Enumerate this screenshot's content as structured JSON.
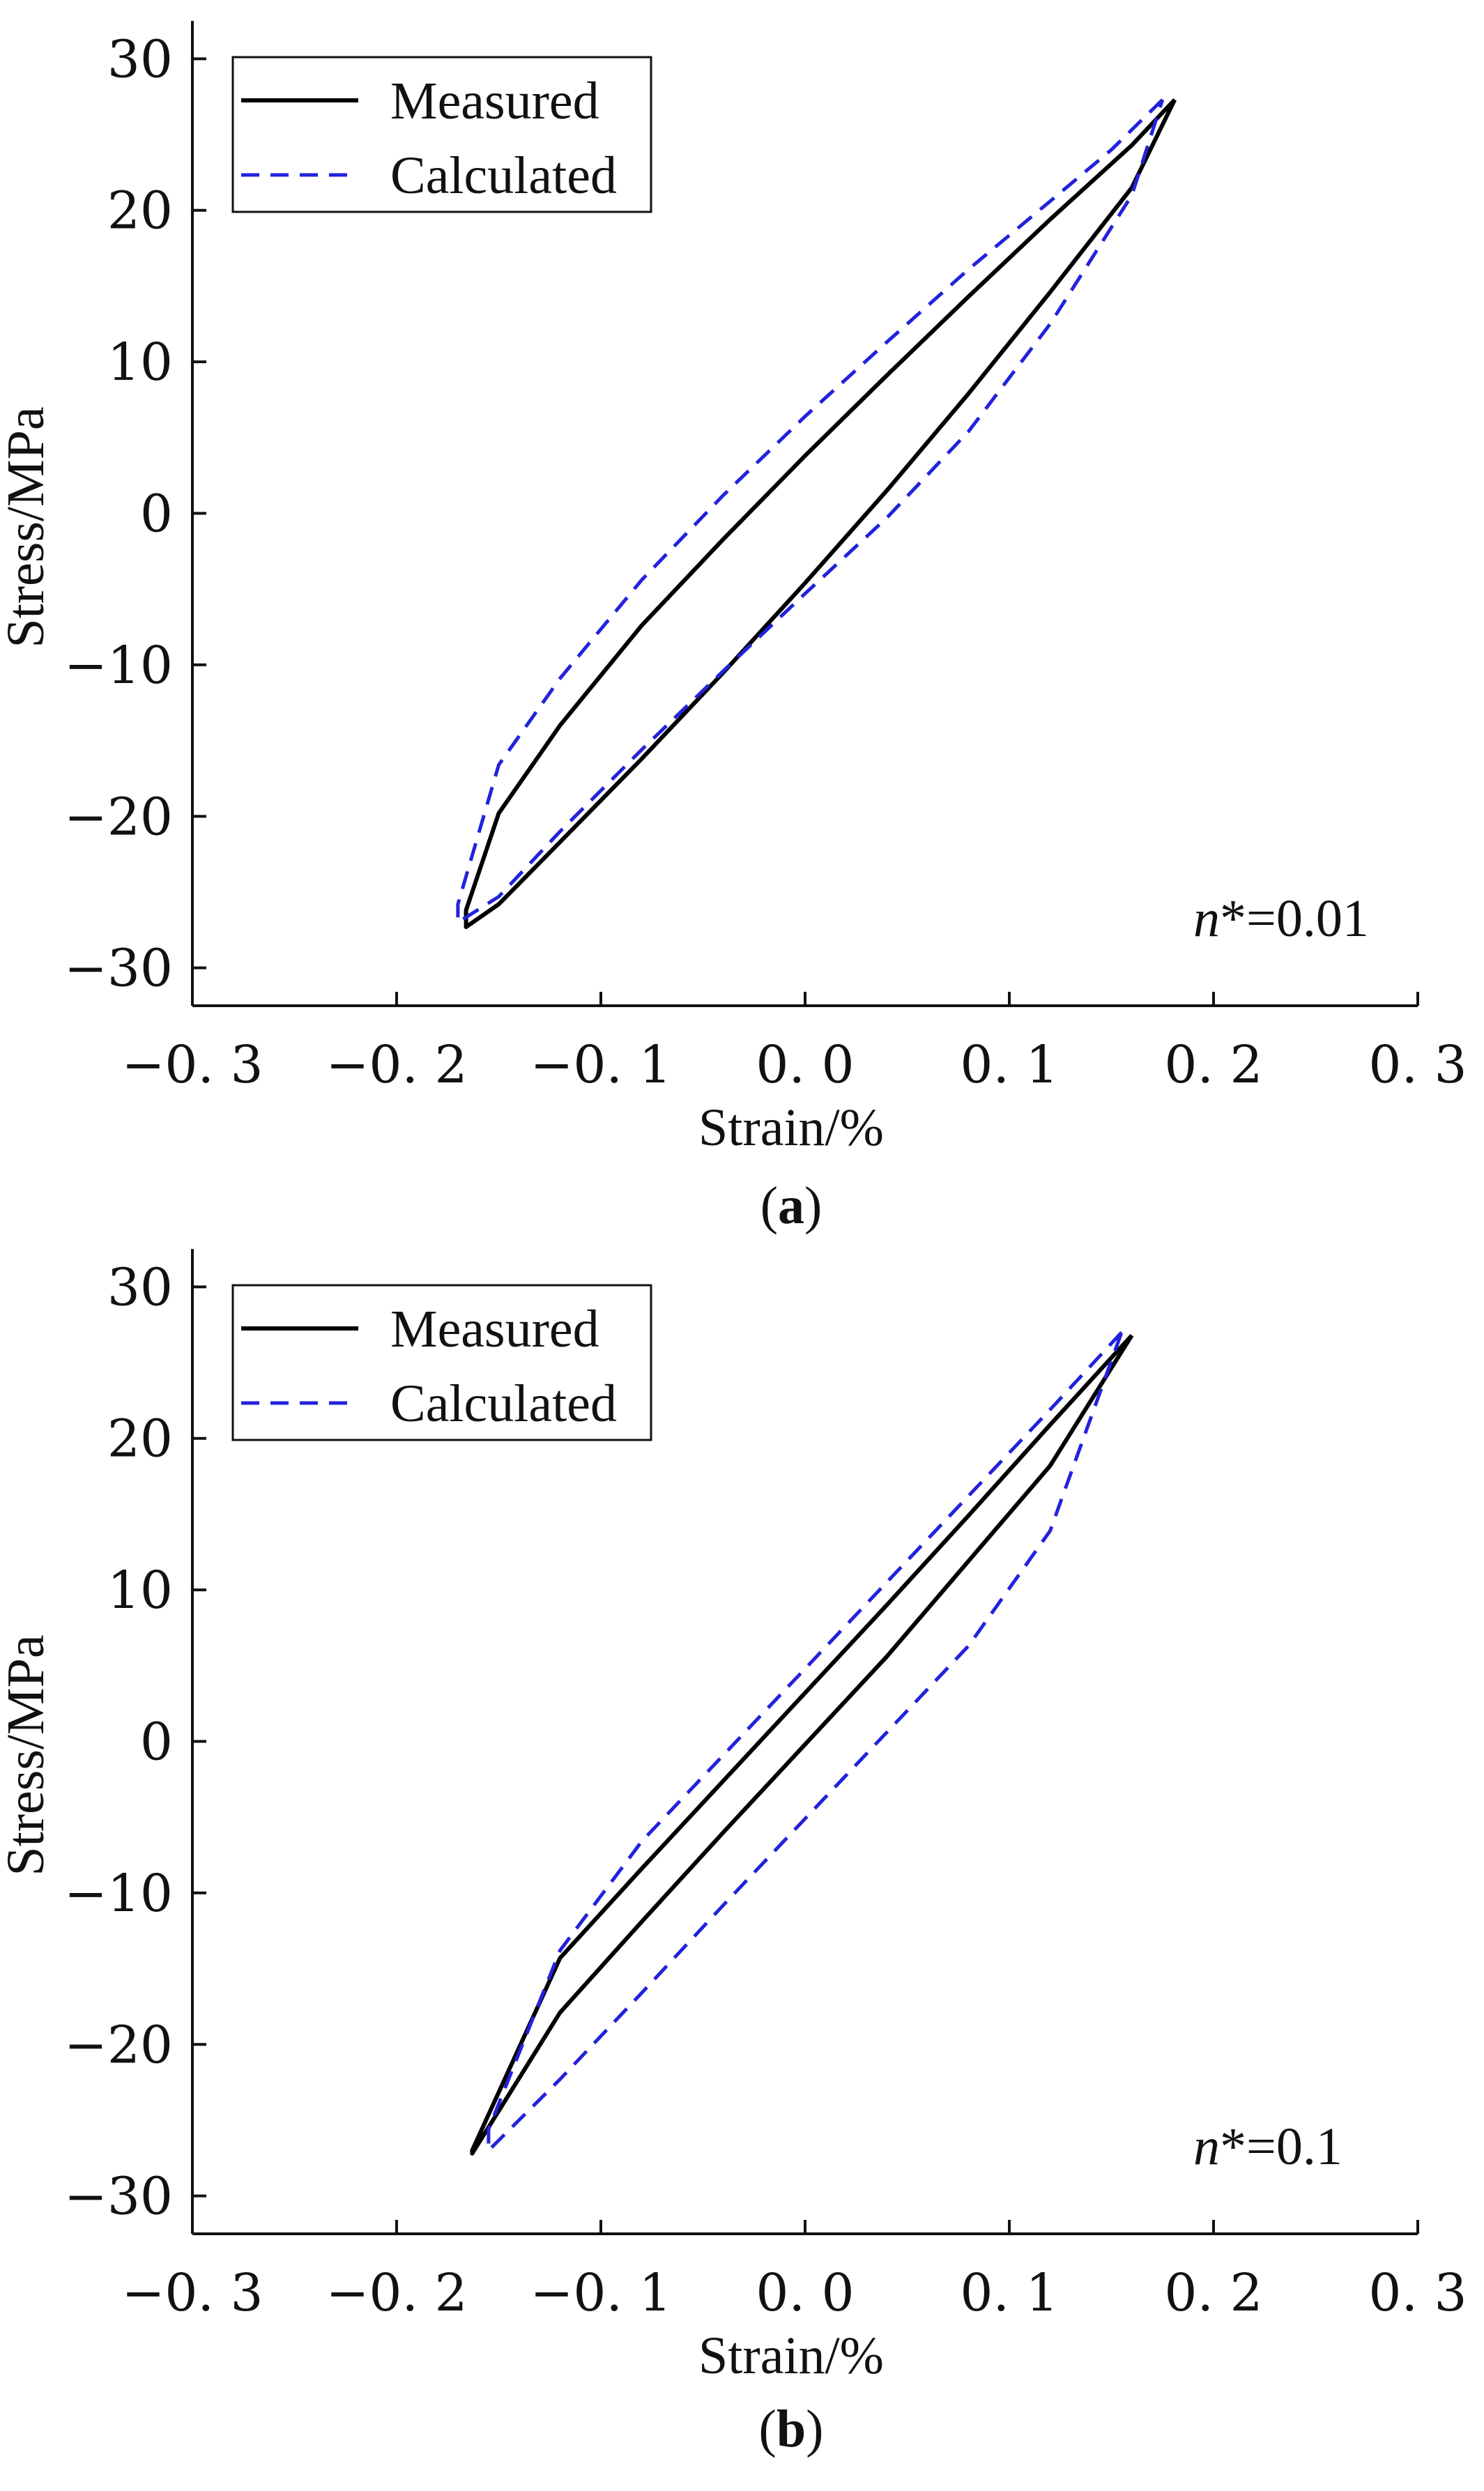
{
  "chart_data": [
    {
      "type": "line",
      "panel_label": "a",
      "xlabel": "Strain/%",
      "ylabel": "Stress/MPa",
      "xlim": [
        -0.3,
        0.3
      ],
      "ylim": [
        -32.5,
        32.5
      ],
      "x_ticks": [
        -0.3,
        -0.2,
        -0.1,
        0.0,
        0.1,
        0.2,
        0.3
      ],
      "x_tick_labels": [
        "−0. 3",
        "−0. 2",
        "−0. 1",
        "0. 0",
        "0. 1",
        "0. 2",
        "0. 3"
      ],
      "y_ticks": [
        -30,
        -20,
        -10,
        0,
        10,
        20,
        30
      ],
      "y_tick_labels": [
        "−30",
        "−20",
        "−10",
        "0",
        "10",
        "20",
        "30"
      ],
      "legend": {
        "position": "top-left",
        "entries": [
          "Measured",
          "Calculated"
        ]
      },
      "annotation": {
        "prefix": "n*",
        "suffix": "=0.01"
      },
      "series": [
        {
          "name": "Measured",
          "color": "#000000",
          "style": "solid",
          "x": [
            0.181,
            0.16,
            0.12,
            0.08,
            0.04,
            0.0,
            -0.04,
            -0.08,
            -0.12,
            -0.15,
            -0.166,
            -0.166,
            -0.15,
            -0.12,
            -0.08,
            -0.04,
            0.0,
            0.04,
            0.08,
            0.12,
            0.16,
            0.181
          ],
          "y": [
            27.3,
            24.3,
            19.4,
            14.3,
            9.1,
            3.8,
            -1.7,
            -7.4,
            -14.0,
            -19.8,
            -26.2,
            -27.3,
            -25.8,
            -21.7,
            -16.2,
            -10.5,
            -4.6,
            1.5,
            7.9,
            14.6,
            21.5,
            27.3
          ]
        },
        {
          "name": "Calculated",
          "color": "#2222dd",
          "style": "dashed",
          "x": [
            0.175,
            0.15,
            0.12,
            0.08,
            0.04,
            0.0,
            -0.04,
            -0.08,
            -0.12,
            -0.15,
            -0.17,
            -0.17,
            -0.15,
            -0.12,
            -0.08,
            -0.04,
            0.0,
            0.04,
            0.08,
            0.12,
            0.16,
            0.175
          ],
          "y": [
            27.3,
            24.0,
            20.6,
            16.1,
            11.3,
            6.4,
            1.2,
            -4.4,
            -10.9,
            -16.6,
            -25.8,
            -27.0,
            -25.3,
            -21.0,
            -15.6,
            -10.4,
            -5.3,
            -0.3,
            5.4,
            12.5,
            21.0,
            27.3
          ]
        }
      ]
    },
    {
      "type": "line",
      "panel_label": "b",
      "xlabel": "Strain/%",
      "ylabel": "Stress/MPa",
      "xlim": [
        -0.3,
        0.3
      ],
      "ylim": [
        -32.5,
        32.5
      ],
      "x_ticks": [
        -0.3,
        -0.2,
        -0.1,
        0.0,
        0.1,
        0.2,
        0.3
      ],
      "x_tick_labels": [
        "−0. 3",
        "−0. 2",
        "−0. 1",
        "0. 0",
        "0. 1",
        "0. 2",
        "0. 3"
      ],
      "y_ticks": [
        -30,
        -20,
        -10,
        0,
        10,
        20,
        30
      ],
      "y_tick_labels": [
        "−30",
        "−20",
        "−10",
        "0",
        "10",
        "20",
        "30"
      ],
      "legend": {
        "position": "top-left",
        "entries": [
          "Measured",
          "Calculated"
        ]
      },
      "annotation": {
        "prefix": "n*",
        "suffix": "=0.1"
      },
      "series": [
        {
          "name": "Measured",
          "color": "#000000",
          "style": "solid",
          "x": [
            0.16,
            0.12,
            0.08,
            0.04,
            0.0,
            -0.04,
            -0.08,
            -0.12,
            -0.163,
            -0.163,
            -0.12,
            -0.08,
            -0.04,
            0.0,
            0.04,
            0.08,
            0.12,
            0.16
          ],
          "y": [
            26.8,
            20.9,
            14.9,
            9.0,
            3.2,
            -2.6,
            -8.4,
            -14.3,
            -27.0,
            -27.2,
            -17.9,
            -11.9,
            -6.0,
            -0.2,
            5.6,
            11.9,
            18.2,
            26.8
          ]
        },
        {
          "name": "Calculated",
          "color": "#2222dd",
          "style": "dashed",
          "x": [
            0.155,
            0.12,
            0.08,
            0.04,
            0.0,
            -0.04,
            -0.08,
            -0.12,
            -0.155,
            -0.155,
            -0.12,
            -0.08,
            -0.04,
            0.0,
            0.04,
            0.08,
            0.12,
            0.155
          ],
          "y": [
            27.0,
            21.9,
            16.2,
            10.5,
            4.8,
            -0.9,
            -6.6,
            -13.8,
            -25.6,
            -27.0,
            -22.3,
            -16.6,
            -10.8,
            -5.1,
            0.6,
            6.3,
            13.9,
            27.0
          ]
        }
      ]
    }
  ]
}
